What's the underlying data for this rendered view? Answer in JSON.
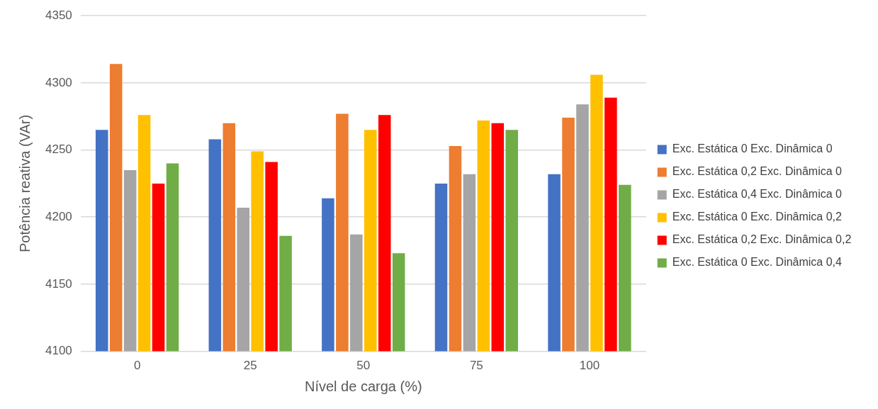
{
  "chart_data": {
    "type": "bar",
    "xlabel": "Nível de carga (%)",
    "ylabel": "Potência reativa (VAr)",
    "categories": [
      "0",
      "25",
      "50",
      "75",
      "100"
    ],
    "series": [
      {
        "name": "Exc. Estática 0 Exc. Dinâmica 0",
        "color": "#4472c4",
        "values": [
          4265,
          4258,
          4214,
          4225,
          4232
        ]
      },
      {
        "name": "Exc. Estática 0,2 Exc. Dinâmica 0",
        "color": "#ed7d31",
        "values": [
          4314,
          4270,
          4277,
          4253,
          4274
        ]
      },
      {
        "name": "Exc. Estática 0,4 Exc. Dinâmica 0",
        "color": "#a5a5a5",
        "values": [
          4235,
          4207,
          4187,
          4232,
          4284
        ]
      },
      {
        "name": "Exc. Estática 0 Exc. Dinâmica 0,2",
        "color": "#ffc000",
        "values": [
          4276,
          4249,
          4265,
          4272,
          4306
        ]
      },
      {
        "name": "Exc. Estática 0,2 Exc. Dinâmica 0,2",
        "color": "#ff0000",
        "values": [
          4225,
          4241,
          4276,
          4270,
          4289
        ]
      },
      {
        "name": "Exc. Estática 0 Exc. Dinâmica 0,4",
        "color": "#70ad47",
        "values": [
          4240,
          4186,
          4173,
          4265,
          4224
        ]
      }
    ],
    "ylim": [
      4100,
      4350
    ],
    "yticks": [
      4100,
      4150,
      4200,
      4250,
      4300,
      4350
    ],
    "grid": "y",
    "legend": "right"
  }
}
